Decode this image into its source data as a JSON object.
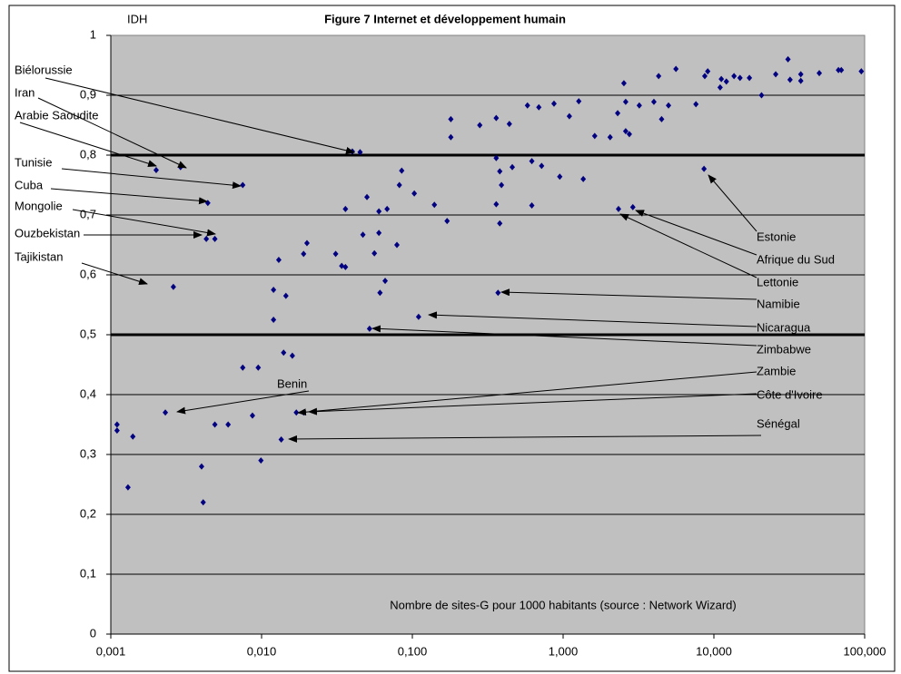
{
  "chart_data": {
    "type": "scatter",
    "title": "Figure 7 Internet et développement humain",
    "y_label": "IDH",
    "x_label": "Nombre de sites-G pour 1000 habitants (source : Network Wizard)",
    "x_log": true,
    "grid": true,
    "color": "#000080",
    "background": "#c0c0c0",
    "xlim": [
      0.001,
      100
    ],
    "ylim": [
      0,
      1
    ],
    "xticks": [
      {
        "value": 0.001,
        "label": "0,001"
      },
      {
        "value": 0.01,
        "label": "0,010"
      },
      {
        "value": 0.1,
        "label": "0,100"
      },
      {
        "value": 1,
        "label": "1,000"
      },
      {
        "value": 10,
        "label": "10,000"
      },
      {
        "value": 100,
        "label": "100,000"
      }
    ],
    "yticks": [
      0,
      {
        "value": 0.1,
        "label": "0,1"
      },
      {
        "value": 0.2,
        "label": "0,2"
      },
      {
        "value": 0.3,
        "label": "0,3"
      },
      {
        "value": 0.4,
        "label": "0,4"
      },
      {
        "value": 0.5,
        "label": "0,5"
      },
      {
        "value": 0.6,
        "label": "0,6"
      },
      {
        "value": 0.7,
        "label": "0,7"
      },
      {
        "value": 0.8,
        "label": "0,8"
      },
      {
        "value": 0.9,
        "label": "0,9"
      },
      1
    ],
    "bold_gridlines": [
      0.5,
      0.8
    ],
    "x": [
      0.0011,
      0.0011,
      0.0013,
      0.0014,
      0.002,
      0.0026,
      0.0029,
      0.0023,
      0.004,
      0.0041,
      0.0044,
      0.0043,
      0.0049,
      0.0049,
      0.006,
      0.0075,
      0.0075,
      0.0095,
      0.0087,
      0.0099,
      0.012,
      0.012,
      0.013,
      0.014,
      0.016,
      0.0145,
      0.0135,
      0.017,
      0.019,
      0.019,
      0.02,
      0.031,
      0.034,
      0.036,
      0.036,
      0.045,
      0.04,
      0.047,
      0.05,
      0.052,
      0.056,
      0.06,
      0.06,
      0.061,
      0.066,
      0.068,
      0.079,
      0.082,
      0.085,
      0.103,
      0.11,
      0.14,
      0.17,
      0.18,
      0.18,
      0.28,
      0.36,
      0.36,
      0.36,
      0.37,
      0.38,
      0.38,
      0.39,
      0.44,
      0.46,
      0.58,
      0.62,
      0.62,
      0.69,
      0.72,
      0.87,
      0.95,
      1.1,
      1.27,
      1.36,
      1.62,
      2.05,
      2.3,
      2.33,
      2.53,
      2.6,
      2.6,
      2.75,
      2.9,
      3.2,
      4.0,
      4.3,
      4.5,
      5.0,
      5.6,
      7.6,
      8.6,
      8.7,
      9.1,
      11,
      11.2,
      12.1,
      13.6,
      14.9,
      17.2,
      20.7,
      25.7,
      31,
      32,
      37.7,
      37.7,
      50,
      67,
      70,
      95
    ],
    "y": [
      0.35,
      0.34,
      0.245,
      0.33,
      0.775,
      0.58,
      0.78,
      0.37,
      0.28,
      0.22,
      0.72,
      0.66,
      0.66,
      0.35,
      0.35,
      0.75,
      0.445,
      0.445,
      0.365,
      0.29,
      0.575,
      0.525,
      0.625,
      0.47,
      0.465,
      0.565,
      0.325,
      0.37,
      0.37,
      0.635,
      0.653,
      0.635,
      0.615,
      0.613,
      0.71,
      0.805,
      0.806,
      0.667,
      0.73,
      0.51,
      0.636,
      0.67,
      0.706,
      0.57,
      0.59,
      0.71,
      0.65,
      0.75,
      0.774,
      0.736,
      0.53,
      0.717,
      0.69,
      0.86,
      0.83,
      0.85,
      0.862,
      0.795,
      0.718,
      0.57,
      0.686,
      0.773,
      0.75,
      0.852,
      0.78,
      0.883,
      0.716,
      0.79,
      0.88,
      0.782,
      0.886,
      0.764,
      0.865,
      0.89,
      0.76,
      0.832,
      0.83,
      0.87,
      0.71,
      0.92,
      0.84,
      0.889,
      0.835,
      0.713,
      0.883,
      0.889,
      0.932,
      0.86,
      0.883,
      0.944,
      0.885,
      0.777,
      0.932,
      0.94,
      0.913,
      0.927,
      0.923,
      0.932,
      0.929,
      0.929,
      0.9,
      0.935,
      0.96,
      0.926,
      0.935,
      0.924,
      0.937,
      0.942,
      0.942,
      0.94
    ],
    "annotations": [
      "Biélorussie",
      "Iran",
      "Arabie Saoudite",
      "Tunisie",
      "Cuba",
      "Mongolie",
      "Ouzbekistan",
      "Tajikistan",
      "Estonie",
      "Afrique du Sud",
      "Lettonie",
      "Namibie",
      "Nicaragua",
      "Zimbabwe",
      "Zambie",
      "Côte d'Ivoire",
      "Sénégal",
      "Benin"
    ]
  }
}
